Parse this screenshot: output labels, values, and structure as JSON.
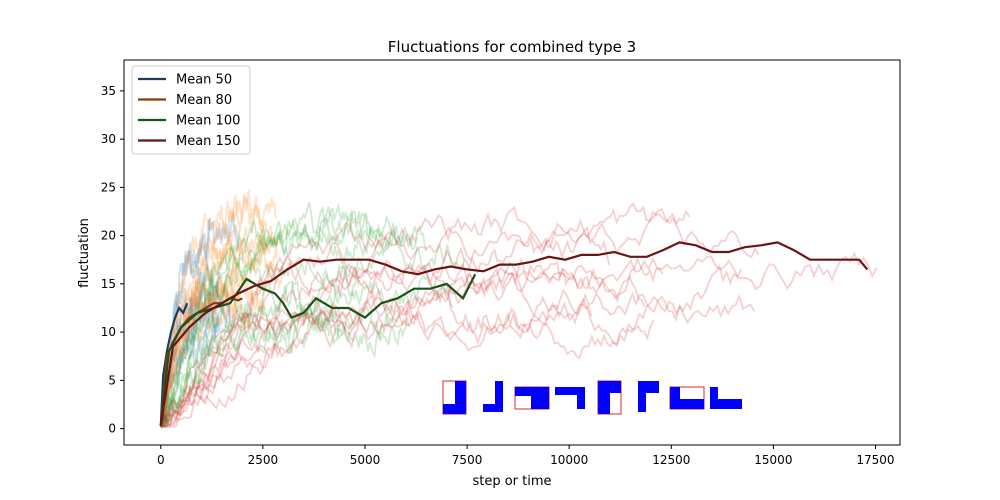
{
  "chart_data": {
    "type": "line",
    "title": "Fluctuations for combined type 3",
    "xlabel": "step or time",
    "ylabel": "fluctuation",
    "xlim": [
      -900,
      18100
    ],
    "ylim": [
      -1.7,
      38.2
    ],
    "xticks": [
      0,
      2500,
      5000,
      7500,
      10000,
      12500,
      15000,
      17500
    ],
    "yticks": [
      0,
      5,
      10,
      15,
      20,
      25,
      30,
      35
    ],
    "grid": false,
    "legend_position": "upper-left",
    "series": [
      {
        "name": "Mean 50",
        "color": "#1f3b5c",
        "x": [
          0,
          60,
          150,
          250,
          350,
          450,
          550,
          650
        ],
        "y": [
          0.3,
          5.5,
          8.0,
          10.0,
          11.5,
          12.5,
          12.0,
          13.0
        ]
      },
      {
        "name": "Mean 80",
        "color": "#8b3a0a",
        "x": [
          0,
          150,
          300,
          500,
          700,
          900,
          1100,
          1300,
          1500,
          1700,
          1900,
          2000
        ],
        "y": [
          0.3,
          7.5,
          9.0,
          10.5,
          11.5,
          12.0,
          12.5,
          13.0,
          13.0,
          13.5,
          13.3,
          13.5
        ]
      },
      {
        "name": "Mean 100",
        "color": "#1a5218",
        "x": [
          0,
          200,
          500,
          900,
          1300,
          1700,
          2100,
          2500,
          2800,
          3000,
          3200,
          3500,
          3800,
          4200,
          4600,
          5000,
          5400,
          5800,
          6200,
          6600,
          7000,
          7400,
          7700
        ],
        "y": [
          0.3,
          8.0,
          10.5,
          12.0,
          12.5,
          13.0,
          15.5,
          14.5,
          14.0,
          13.0,
          11.5,
          12.0,
          13.5,
          12.5,
          12.5,
          11.5,
          13.0,
          13.5,
          14.5,
          14.5,
          15.0,
          13.5,
          16.0
        ]
      },
      {
        "name": "Mean 150",
        "color": "#6b1414",
        "x": [
          0,
          300,
          700,
          1100,
          1500,
          1900,
          2300,
          2700,
          3100,
          3500,
          3900,
          4300,
          4700,
          5100,
          5500,
          5900,
          6300,
          6700,
          7100,
          7500,
          7900,
          8300,
          8700,
          9100,
          9500,
          9900,
          10300,
          10700,
          11100,
          11500,
          11900,
          12300,
          12700,
          13100,
          13500,
          13900,
          14300,
          14700,
          15100,
          15500,
          15900,
          16300,
          16700,
          17100,
          17300
        ],
        "y": [
          0.3,
          8.5,
          10.5,
          12.0,
          13.0,
          14.0,
          14.8,
          15.3,
          16.5,
          17.5,
          17.3,
          17.5,
          17.5,
          17.5,
          17.0,
          16.3,
          16.0,
          16.5,
          16.8,
          16.5,
          16.3,
          17.0,
          17.0,
          17.3,
          17.8,
          17.5,
          18.0,
          18.0,
          18.3,
          17.8,
          17.8,
          18.5,
          19.3,
          19.0,
          18.3,
          18.3,
          18.8,
          19.0,
          19.3,
          18.5,
          17.5,
          17.5,
          17.5,
          17.5,
          16.5
        ]
      }
    ],
    "legend": [
      "Mean 50",
      "Mean 80",
      "Mean 100",
      "Mean 150"
    ]
  }
}
